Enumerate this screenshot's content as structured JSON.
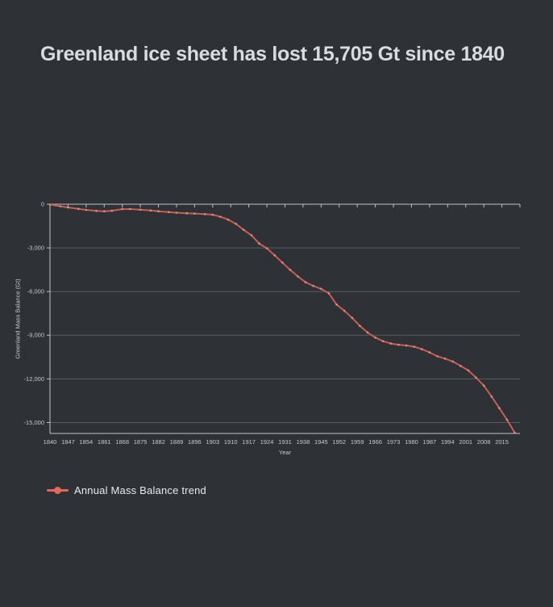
{
  "chart_data": {
    "type": "line",
    "title": "Greenland ice sheet has lost 15,705 Gt since 1840",
    "xlabel": "Year",
    "ylabel": "Greenland Mass Balance (Gt)",
    "xlim": [
      1840,
      2022
    ],
    "ylim": [
      -15750,
      0
    ],
    "grid": true,
    "legend_position": "bottom-left",
    "legend_label": "Annual Mass Balance trend",
    "x_tick_step": 7,
    "x_tick_labels": [
      1840,
      1847,
      1854,
      1861,
      1868,
      1875,
      1882,
      1889,
      1896,
      1903,
      1910,
      1917,
      1924,
      1931,
      1938,
      1945,
      1952,
      1959,
      1966,
      1973,
      1980,
      1987,
      1994,
      2001,
      2008,
      2015
    ],
    "y_ticks": [
      {
        "value": 0,
        "label": "0"
      },
      {
        "value": -3000,
        "label": "-3,000"
      },
      {
        "value": -6000,
        "label": "-6,000"
      },
      {
        "value": -9000,
        "label": "-9,000"
      },
      {
        "value": -12000,
        "label": "-12,000"
      },
      {
        "value": -15000,
        "label": "-15,000"
      }
    ],
    "series": [
      {
        "name": "Annual Mass Balance trend",
        "points": [
          [
            1840,
            -30
          ],
          [
            1844,
            -140
          ],
          [
            1847,
            -220
          ],
          [
            1851,
            -320
          ],
          [
            1854,
            -390
          ],
          [
            1858,
            -455
          ],
          [
            1861,
            -490
          ],
          [
            1864,
            -450
          ],
          [
            1868,
            -330
          ],
          [
            1871,
            -330
          ],
          [
            1875,
            -375
          ],
          [
            1879,
            -435
          ],
          [
            1882,
            -480
          ],
          [
            1886,
            -545
          ],
          [
            1889,
            -580
          ],
          [
            1893,
            -620
          ],
          [
            1896,
            -645
          ],
          [
            1900,
            -680
          ],
          [
            1903,
            -720
          ],
          [
            1906,
            -860
          ],
          [
            1909,
            -1060
          ],
          [
            1912,
            -1350
          ],
          [
            1915,
            -1760
          ],
          [
            1918,
            -2130
          ],
          [
            1921,
            -2700
          ],
          [
            1924,
            -3030
          ],
          [
            1927,
            -3510
          ],
          [
            1930,
            -4010
          ],
          [
            1933,
            -4510
          ],
          [
            1936,
            -4960
          ],
          [
            1939,
            -5360
          ],
          [
            1942,
            -5610
          ],
          [
            1945,
            -5810
          ],
          [
            1948,
            -6120
          ],
          [
            1951,
            -6900
          ],
          [
            1954,
            -7320
          ],
          [
            1957,
            -7810
          ],
          [
            1960,
            -8360
          ],
          [
            1963,
            -8810
          ],
          [
            1966,
            -9160
          ],
          [
            1969,
            -9410
          ],
          [
            1972,
            -9570
          ],
          [
            1975,
            -9655
          ],
          [
            1978,
            -9705
          ],
          [
            1981,
            -9790
          ],
          [
            1984,
            -9960
          ],
          [
            1987,
            -10180
          ],
          [
            1990,
            -10450
          ],
          [
            1993,
            -10610
          ],
          [
            1996,
            -10810
          ],
          [
            1999,
            -11110
          ],
          [
            2002,
            -11420
          ],
          [
            2005,
            -11910
          ],
          [
            2008,
            -12460
          ],
          [
            2011,
            -13210
          ],
          [
            2014,
            -14010
          ],
          [
            2017,
            -14810
          ],
          [
            2020,
            -15705
          ]
        ]
      }
    ],
    "colors": {
      "background": "#2e3237",
      "title_text": "#d9dcde",
      "tick_text": "#c4c9ce",
      "axis_line": "#bcc2c7",
      "grid_line": "#565d63",
      "series_line": "#c75d54",
      "series_marker": "#dd8d82",
      "legend_marker": "#e2695a",
      "legend_text": "#e9ebed"
    }
  }
}
